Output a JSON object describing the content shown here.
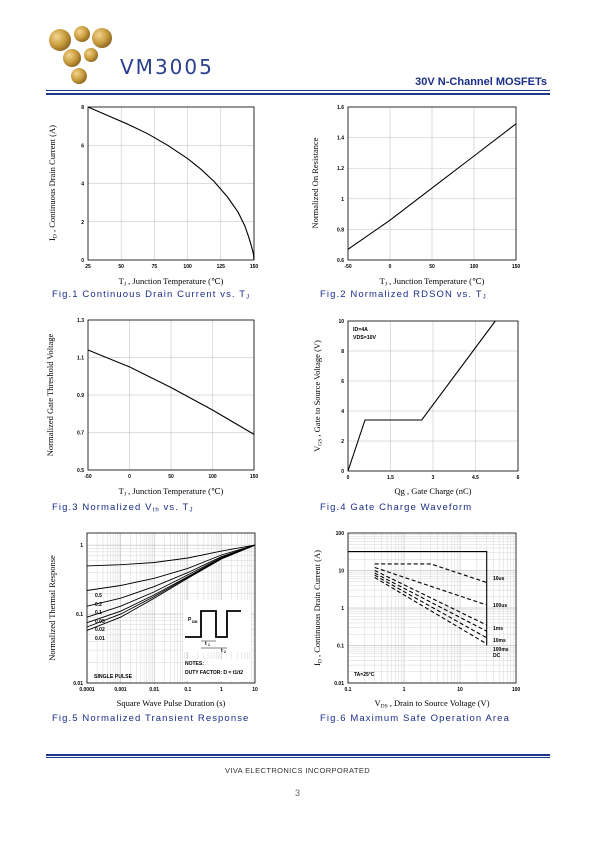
{
  "header": {
    "brand": "VM3005",
    "subtitle": "30V N-Channel MOSFETs"
  },
  "footer": {
    "company": "VIVA ELECTRONICS INCORPORATED",
    "page": "3"
  },
  "chart_data": [
    {
      "id": "fig1",
      "type": "line",
      "caption": {
        "num": "Fig.1",
        "text": "Continuous Drain Current vs. T",
        "sub": "J"
      },
      "xlabel": {
        "pre": "T",
        "sub": "J",
        "post": " , Junction Temperature (℃)"
      },
      "ylabel": {
        "pre": "I",
        "sub": "D",
        "post": " , Continuous Drain Current (A)"
      },
      "xticks": [
        "25",
        "50",
        "75",
        "100",
        "125",
        "150"
      ],
      "yticks": [
        "0",
        "2",
        "4",
        "6",
        "8"
      ],
      "xlim": [
        25,
        150
      ],
      "ylim": [
        0,
        8
      ],
      "series": [
        {
          "x": [
            25,
            40,
            55,
            70,
            85,
            100,
            110,
            120,
            130,
            138,
            143,
            146,
            148,
            149.5,
            150
          ],
          "y": [
            8,
            7.55,
            7.1,
            6.6,
            6.0,
            5.3,
            4.75,
            4.1,
            3.3,
            2.5,
            1.8,
            1.2,
            0.75,
            0.35,
            0
          ]
        }
      ]
    },
    {
      "id": "fig2",
      "type": "line",
      "caption": {
        "num": "Fig.2",
        "text": "Normalized RDSON vs. T",
        "sub": "J"
      },
      "xlabel": {
        "pre": "T",
        "sub": "J",
        "post": " , Junction Temperature (℃)"
      },
      "ylabel": {
        "pre": "Normalized On Resistance",
        "sub": "",
        "post": ""
      },
      "xticks": [
        "-50",
        "0",
        "50",
        "100",
        "150"
      ],
      "yticks": [
        "0.6",
        "0.8",
        "1",
        "1.2",
        "1.4",
        "1.6"
      ],
      "xlim": [
        -50,
        150
      ],
      "ylim": [
        0.6,
        1.6
      ],
      "series": [
        {
          "x": [
            -50,
            0,
            50,
            100,
            150
          ],
          "y": [
            0.67,
            0.86,
            1.07,
            1.28,
            1.49
          ]
        }
      ]
    },
    {
      "id": "fig3",
      "type": "line",
      "caption": {
        "num": "Fig.3",
        "text": "Normalized V",
        "sub": "th",
        "mid": " vs. T",
        "sub2": "J"
      },
      "xlabel": {
        "pre": "T",
        "sub": "J",
        "post": " , Junction Temperature (℃)"
      },
      "ylabel": {
        "pre": "Normalized Gate Threshold Voltage",
        "sub": "",
        "post": ""
      },
      "xticks": [
        "-50",
        "0",
        "50",
        "100",
        "150"
      ],
      "yticks": [
        "0.5",
        "0.7",
        "0.9",
        "1.1",
        "1.3"
      ],
      "xlim": [
        -50,
        150
      ],
      "ylim": [
        0.5,
        1.3
      ],
      "series": [
        {
          "x": [
            -50,
            0,
            50,
            100,
            150
          ],
          "y": [
            1.14,
            1.05,
            0.94,
            0.82,
            0.69
          ]
        }
      ]
    },
    {
      "id": "fig4",
      "type": "line",
      "caption": {
        "num": "Fig.4",
        "text": "Gate Charge Waveform",
        "sub": ""
      },
      "xlabel": {
        "pre": "Qg",
        "sub": "",
        "post": " , Gate Charge (nC)"
      },
      "ylabel": {
        "pre": "V",
        "sub": "GS",
        "post": " , Gate to Source Voltage (V)"
      },
      "xticks": [
        "0",
        "1.5",
        "3",
        "4.5",
        "6"
      ],
      "yticks": [
        "0",
        "2",
        "4",
        "6",
        "8",
        "10"
      ],
      "xlim": [
        0,
        6
      ],
      "ylim": [
        0,
        10
      ],
      "annotations": [
        "ID=4A",
        "VDS=10V"
      ],
      "series": [
        {
          "x": [
            0,
            0.6,
            2.6,
            5.2
          ],
          "y": [
            0,
            3.4,
            3.4,
            10
          ]
        }
      ]
    },
    {
      "id": "fig5",
      "type": "line",
      "caption": {
        "num": "Fig.5",
        "text": "Normalized Transient Response",
        "sub": ""
      },
      "xlabel": {
        "pre": "Square Wave Pulse Duration (s)",
        "sub": "",
        "post": ""
      },
      "ylabel": {
        "pre": "Normalized Thermal Response",
        "sub": "",
        "post": ""
      },
      "xticks": [
        "0.0001",
        "0.001",
        "0.01",
        "0.1",
        "1",
        "10"
      ],
      "yticks": [
        "0.01",
        "0.1",
        "1"
      ],
      "xlim": [
        0.0001,
        10
      ],
      "ylim": [
        0.01,
        1.5
      ],
      "xscale": "log",
      "yscale": "log",
      "legend": [
        "0.5",
        "0.2",
        "0.1",
        "0.05",
        "0.02",
        "0.01"
      ],
      "labels": [
        "SINGLE PULSE",
        "NOTES:",
        "DUTY FACTOR: D = t1/t2",
        "P",
        "DM",
        "t",
        "1",
        "t",
        "2"
      ],
      "series": [
        {
          "name": "0.5",
          "x": [
            0.0001,
            0.001,
            0.01,
            0.1,
            1,
            10
          ],
          "y": [
            0.5,
            0.52,
            0.56,
            0.65,
            0.82,
            1.0
          ]
        },
        {
          "name": "0.2",
          "x": [
            0.0001,
            0.001,
            0.01,
            0.1,
            1,
            10
          ],
          "y": [
            0.22,
            0.26,
            0.33,
            0.46,
            0.72,
            1.0
          ]
        },
        {
          "name": "0.1",
          "x": [
            0.0001,
            0.001,
            0.01,
            0.1,
            1,
            10
          ],
          "y": [
            0.13,
            0.17,
            0.25,
            0.4,
            0.68,
            1.0
          ]
        },
        {
          "name": "0.05",
          "x": [
            0.0001,
            0.001,
            0.01,
            0.1,
            1,
            10
          ],
          "y": [
            0.09,
            0.13,
            0.21,
            0.37,
            0.66,
            1.0
          ]
        },
        {
          "name": "0.02",
          "x": [
            0.0001,
            0.001,
            0.01,
            0.1,
            1,
            10
          ],
          "y": [
            0.075,
            0.11,
            0.19,
            0.35,
            0.65,
            1.0
          ]
        },
        {
          "name": "0.01",
          "x": [
            0.0001,
            0.001,
            0.01,
            0.1,
            1,
            10
          ],
          "y": [
            0.065,
            0.1,
            0.18,
            0.34,
            0.64,
            1.0
          ]
        },
        {
          "name": "SINGLE PULSE",
          "x": [
            0.0001,
            0.001,
            0.01,
            0.1,
            1,
            10
          ],
          "y": [
            0.058,
            0.09,
            0.17,
            0.33,
            0.63,
            1.0
          ]
        }
      ]
    },
    {
      "id": "fig6",
      "type": "line",
      "caption": {
        "num": "Fig.6",
        "text": "Maximum Safe Operation Area",
        "sub": ""
      },
      "xlabel": {
        "pre": "V",
        "sub": "DS",
        "post": " , Drain to Source Voltage (V)"
      },
      "ylabel": {
        "pre": "I",
        "sub": "D",
        "post": " , Continuous Drain Current (A)"
      },
      "xticks": [
        "0.1",
        "1",
        "10",
        "100"
      ],
      "yticks": [
        "0.01",
        "0.1",
        "1",
        "10",
        "100"
      ],
      "xlim": [
        0.1,
        100
      ],
      "ylim": [
        0.01,
        100
      ],
      "xscale": "log",
      "yscale": "log",
      "annotation": "TA=25°C",
      "legend": [
        "10us",
        "100us",
        "1ms",
        "10ms",
        "100ms",
        "DC"
      ],
      "series": [
        {
          "name": "limit",
          "x": [
            0.1,
            0.3,
            0.6,
            30,
            30
          ],
          "y": [
            32,
            32,
            32,
            32,
            0.1
          ]
        },
        {
          "name": "10us",
          "x": [
            0.3,
            3,
            30
          ],
          "y": [
            15,
            15,
            4.8
          ]
        },
        {
          "name": "100us",
          "x": [
            0.3,
            30
          ],
          "y": [
            12,
            1.2
          ]
        },
        {
          "name": "1ms",
          "x": [
            0.3,
            30
          ],
          "y": [
            10,
            0.35
          ]
        },
        {
          "name": "10ms",
          "x": [
            0.3,
            30
          ],
          "y": [
            8.5,
            0.24
          ]
        },
        {
          "name": "100ms",
          "x": [
            0.3,
            30
          ],
          "y": [
            7.5,
            0.16
          ]
        },
        {
          "name": "DC",
          "x": [
            0.3,
            30
          ],
          "y": [
            6.5,
            0.11
          ]
        }
      ]
    }
  ]
}
